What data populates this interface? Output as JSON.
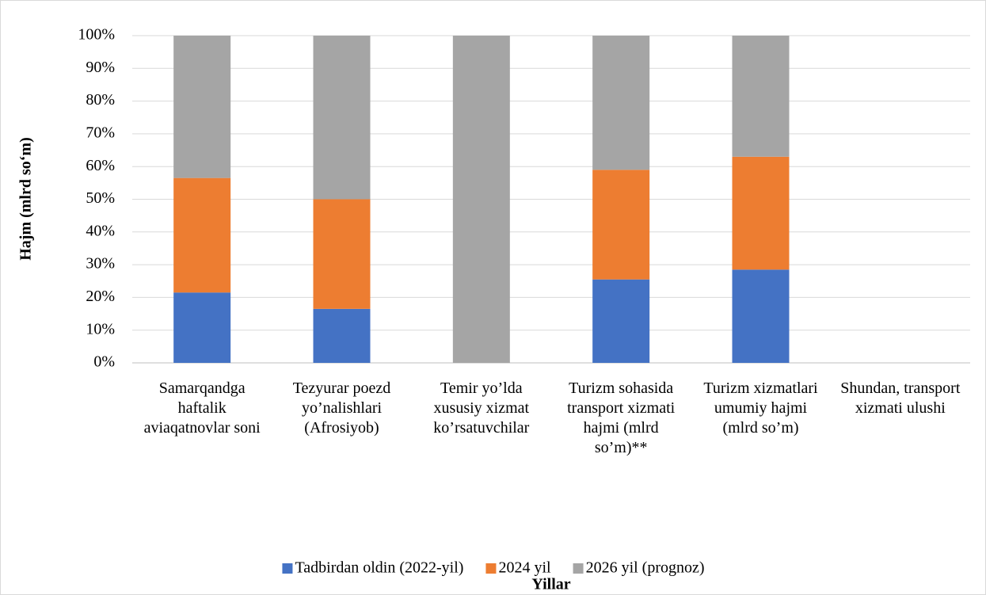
{
  "chart_data": {
    "type": "stacked_bar",
    "categories": [
      "Samarqandga haftalik aviaqatnovlar soni",
      "Tezyurar poezd yo’nalishlari (Afrosiyob)",
      "Temir yo’lda xususiy xizmat ko’rsatuvchilar",
      "Turizm sohasida transport xizmati hajmi (mlrd so’m)**",
      "Turizm xizmatlari umumiy hajmi (mlrd so’m)",
      "Shundan, transport xizmati ulushi"
    ],
    "series": [
      {
        "name": "Tadbirdan oldin (2022-yil)",
        "color": "#4472c4",
        "values": [
          21.5,
          16.5,
          0,
          25.5,
          28.5,
          null
        ]
      },
      {
        "name": "2024 yil",
        "color": "#ed7d31",
        "values": [
          35,
          33.5,
          0,
          33.5,
          34.5,
          null
        ]
      },
      {
        "name": "2026 yil (prognoz)",
        "color": "#a5a5a5",
        "values": [
          43.5,
          50,
          100,
          41,
          37,
          null
        ]
      }
    ],
    "ylim": [
      0,
      100
    ],
    "yticks": [
      {
        "value": 0,
        "label": "0%"
      },
      {
        "value": 10,
        "label": "10%"
      },
      {
        "value": 20,
        "label": "20%"
      },
      {
        "value": 30,
        "label": "30%"
      },
      {
        "value": 40,
        "label": "40%"
      },
      {
        "value": 50,
        "label": "50%"
      },
      {
        "value": 60,
        "label": "60%"
      },
      {
        "value": 70,
        "label": "70%"
      },
      {
        "value": 80,
        "label": "80%"
      },
      {
        "value": 90,
        "label": "90%"
      },
      {
        "value": 100,
        "label": "100%"
      }
    ],
    "ylabel": "Hajm (mlrd so‘m)",
    "xlabel": "Yillar",
    "grid": true,
    "legend": "bottom"
  }
}
